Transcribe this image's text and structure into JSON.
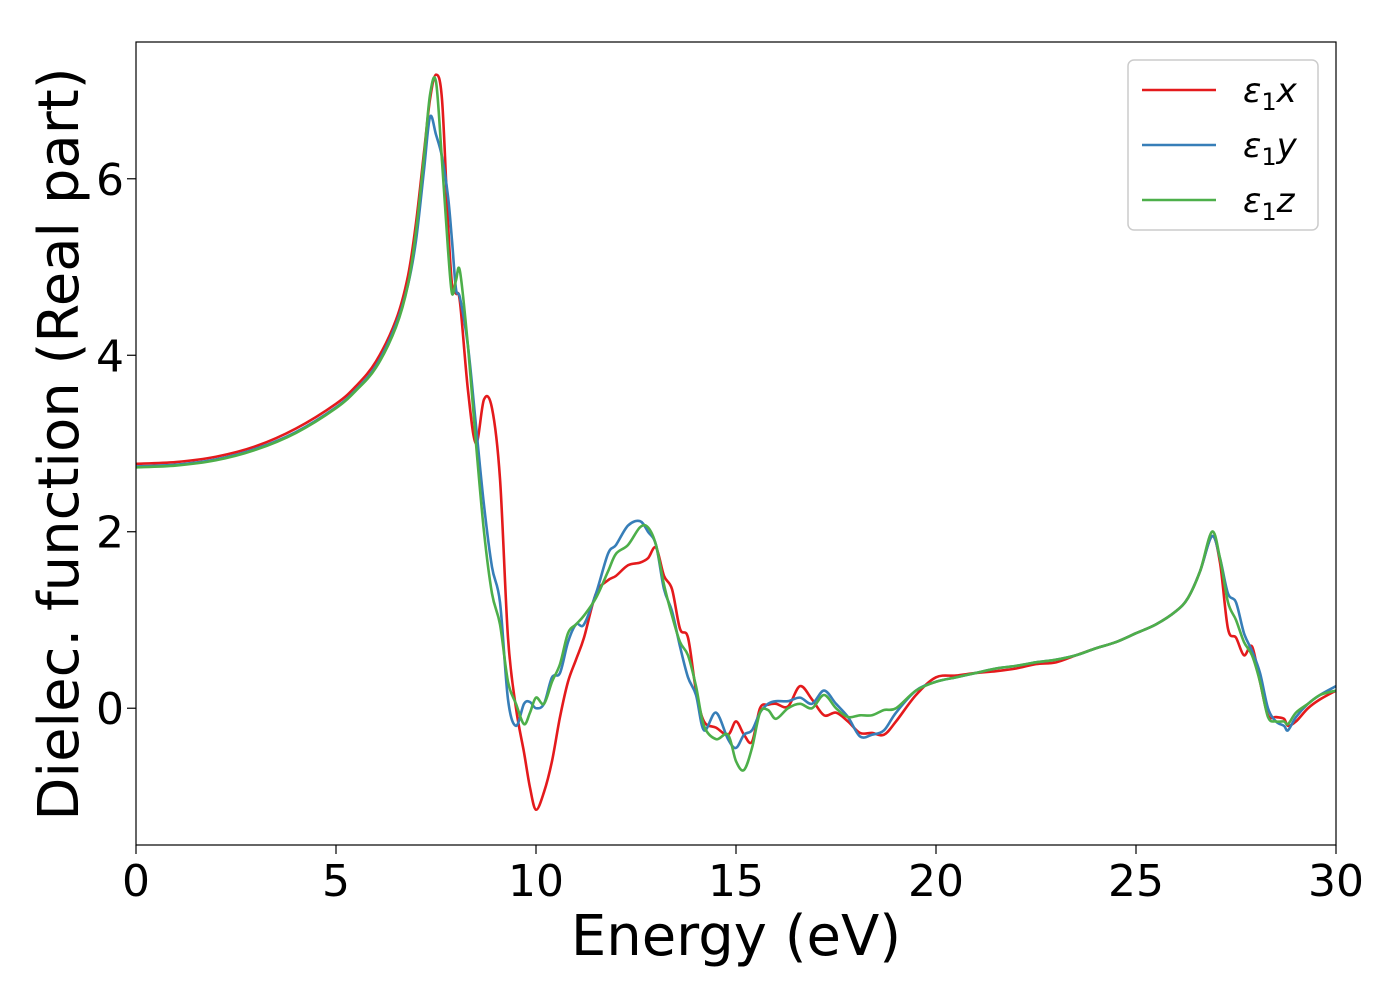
{
  "chart_data": {
    "type": "line",
    "title": "",
    "xlabel": "Energy (eV)",
    "ylabel": "Dielec. function (Real part)",
    "xlim": [
      0,
      30
    ],
    "ylim": [
      -1.55,
      7.55
    ],
    "xticks": [
      0,
      5,
      10,
      15,
      20,
      25,
      30
    ],
    "yticks": [
      0,
      2,
      4,
      6
    ],
    "grid": false,
    "legend_position": "top-right",
    "series": [
      {
        "name": "ε1x",
        "label_parts": [
          "ε",
          "1",
          "x"
        ],
        "color": "#e41a1c",
        "x": [
          0,
          1,
          2,
          3,
          4,
          5,
          5.5,
          6,
          6.5,
          6.8,
          7.0,
          7.2,
          7.35,
          7.5,
          7.65,
          7.8,
          7.9,
          8.0,
          8.1,
          8.3,
          8.5,
          8.7,
          8.9,
          9.1,
          9.3,
          9.5,
          9.7,
          9.85,
          10.0,
          10.2,
          10.4,
          10.6,
          10.8,
          11.0,
          11.2,
          11.5,
          11.8,
          12.0,
          12.3,
          12.6,
          12.8,
          13.0,
          13.2,
          13.4,
          13.6,
          13.8,
          14.0,
          14.2,
          14.5,
          14.8,
          15.0,
          15.2,
          15.4,
          15.6,
          15.8,
          16.0,
          16.3,
          16.6,
          16.9,
          17.2,
          17.5,
          17.8,
          18.1,
          18.4,
          18.7,
          19.0,
          19.5,
          20.0,
          20.5,
          21.0,
          21.5,
          22.0,
          22.5,
          23.0,
          23.5,
          24.0,
          24.5,
          25.0,
          25.5,
          26.0,
          26.3,
          26.6,
          26.9,
          27.1,
          27.3,
          27.5,
          27.7,
          27.9,
          28.1,
          28.3,
          28.5,
          28.7,
          28.8,
          29.0,
          29.3,
          29.6,
          30.0
        ],
        "y": [
          2.77,
          2.79,
          2.85,
          2.97,
          3.17,
          3.45,
          3.65,
          3.93,
          4.4,
          4.9,
          5.5,
          6.3,
          6.9,
          7.18,
          6.9,
          5.5,
          4.8,
          4.7,
          4.6,
          3.6,
          3.0,
          3.5,
          3.4,
          2.6,
          0.8,
          0.0,
          -0.5,
          -0.9,
          -1.15,
          -0.95,
          -0.6,
          -0.1,
          0.3,
          0.55,
          0.8,
          1.3,
          1.45,
          1.5,
          1.62,
          1.65,
          1.7,
          1.82,
          1.5,
          1.35,
          0.9,
          0.8,
          0.2,
          -0.15,
          -0.22,
          -0.3,
          -0.15,
          -0.3,
          -0.38,
          0.0,
          0.04,
          0.05,
          0.02,
          0.25,
          0.1,
          -0.08,
          -0.05,
          -0.15,
          -0.28,
          -0.28,
          -0.3,
          -0.15,
          0.15,
          0.35,
          0.37,
          0.4,
          0.42,
          0.45,
          0.5,
          0.52,
          0.6,
          0.68,
          0.75,
          0.85,
          0.95,
          1.1,
          1.25,
          1.55,
          1.95,
          1.65,
          0.9,
          0.8,
          0.6,
          0.7,
          0.3,
          -0.08,
          -0.1,
          -0.12,
          -0.2,
          -0.15,
          0.0,
          0.1,
          0.2
        ]
      },
      {
        "name": "ε1y",
        "label_parts": [
          "ε",
          "1",
          "y"
        ],
        "color": "#377eb8",
        "x": [
          0,
          1,
          2,
          3,
          4,
          5,
          5.5,
          6,
          6.5,
          6.8,
          7.0,
          7.2,
          7.35,
          7.5,
          7.65,
          7.8,
          7.9,
          8.0,
          8.1,
          8.3,
          8.5,
          8.7,
          8.9,
          9.1,
          9.3,
          9.5,
          9.7,
          9.85,
          10.0,
          10.2,
          10.4,
          10.6,
          10.8,
          11.0,
          11.2,
          11.5,
          11.8,
          12.0,
          12.3,
          12.6,
          12.8,
          13.0,
          13.2,
          13.4,
          13.6,
          13.8,
          14.0,
          14.2,
          14.5,
          14.8,
          15.0,
          15.2,
          15.4,
          15.6,
          15.8,
          16.0,
          16.3,
          16.6,
          16.9,
          17.2,
          17.5,
          17.8,
          18.1,
          18.4,
          18.7,
          19.0,
          19.5,
          20.0,
          20.5,
          21.0,
          21.5,
          22.0,
          22.5,
          23.0,
          23.5,
          24.0,
          24.5,
          25.0,
          25.5,
          26.0,
          26.3,
          26.6,
          26.9,
          27.1,
          27.3,
          27.5,
          27.7,
          27.9,
          28.1,
          28.3,
          28.5,
          28.7,
          28.8,
          29.0,
          29.3,
          29.6,
          30.0
        ],
        "y": [
          2.74,
          2.76,
          2.82,
          2.94,
          3.13,
          3.41,
          3.61,
          3.88,
          4.35,
          4.8,
          5.3,
          6.1,
          6.7,
          6.5,
          6.25,
          5.8,
          5.3,
          4.75,
          4.65,
          4.1,
          3.2,
          2.3,
          1.6,
          1.2,
          0.1,
          -0.2,
          0.05,
          0.07,
          0.0,
          0.05,
          0.35,
          0.4,
          0.75,
          0.95,
          0.95,
          1.3,
          1.75,
          1.85,
          2.07,
          2.12,
          2.0,
          1.85,
          1.35,
          1.1,
          0.7,
          0.35,
          0.15,
          -0.25,
          -0.05,
          -0.35,
          -0.45,
          -0.3,
          -0.25,
          -0.05,
          0.05,
          0.08,
          0.08,
          0.12,
          0.05,
          0.2,
          0.05,
          -0.1,
          -0.32,
          -0.3,
          -0.25,
          -0.05,
          0.2,
          0.3,
          0.35,
          0.4,
          0.45,
          0.48,
          0.52,
          0.55,
          0.6,
          0.68,
          0.75,
          0.85,
          0.95,
          1.1,
          1.25,
          1.55,
          1.95,
          1.7,
          1.3,
          1.2,
          0.85,
          0.65,
          0.4,
          0.0,
          -0.15,
          -0.2,
          -0.25,
          -0.1,
          0.05,
          0.15,
          0.25
        ]
      },
      {
        "name": "ε1z",
        "label_parts": [
          "ε",
          "1",
          "z"
        ],
        "color": "#4daf4a",
        "x": [
          0,
          1,
          2,
          3,
          4,
          5,
          5.5,
          6,
          6.5,
          6.8,
          7.0,
          7.2,
          7.35,
          7.5,
          7.65,
          7.8,
          7.9,
          8.0,
          8.1,
          8.3,
          8.5,
          8.7,
          8.9,
          9.1,
          9.3,
          9.5,
          9.7,
          9.85,
          10.0,
          10.2,
          10.4,
          10.6,
          10.8,
          11.0,
          11.2,
          11.5,
          11.8,
          12.0,
          12.3,
          12.6,
          12.8,
          13.0,
          13.2,
          13.4,
          13.6,
          13.8,
          14.0,
          14.2,
          14.5,
          14.8,
          15.0,
          15.2,
          15.4,
          15.6,
          15.8,
          16.0,
          16.3,
          16.6,
          16.9,
          17.2,
          17.5,
          17.8,
          18.1,
          18.4,
          18.7,
          19.0,
          19.5,
          20.0,
          20.5,
          21.0,
          21.5,
          22.0,
          22.5,
          23.0,
          23.5,
          24.0,
          24.5,
          25.0,
          25.5,
          26.0,
          26.3,
          26.6,
          26.9,
          27.1,
          27.3,
          27.5,
          27.7,
          27.9,
          28.1,
          28.3,
          28.5,
          28.7,
          28.8,
          29.0,
          29.3,
          29.6,
          30.0
        ],
        "y": [
          2.73,
          2.75,
          2.81,
          2.93,
          3.12,
          3.4,
          3.6,
          3.86,
          4.32,
          4.8,
          5.4,
          6.25,
          6.95,
          7.1,
          6.2,
          5.2,
          4.7,
          4.85,
          4.95,
          4.1,
          3.0,
          2.0,
          1.3,
          0.95,
          0.3,
          0.05,
          -0.18,
          -0.05,
          0.12,
          0.05,
          0.3,
          0.5,
          0.85,
          0.95,
          1.05,
          1.25,
          1.55,
          1.75,
          1.85,
          2.05,
          2.05,
          1.85,
          1.4,
          1.05,
          0.75,
          0.6,
          0.25,
          -0.2,
          -0.35,
          -0.3,
          -0.6,
          -0.7,
          -0.45,
          -0.05,
          -0.02,
          -0.12,
          0.0,
          0.05,
          0.0,
          0.15,
          0.0,
          -0.1,
          -0.08,
          -0.08,
          -0.02,
          0.0,
          0.2,
          0.3,
          0.35,
          0.4,
          0.45,
          0.48,
          0.52,
          0.55,
          0.6,
          0.68,
          0.75,
          0.85,
          0.95,
          1.1,
          1.25,
          1.55,
          2.0,
          1.7,
          1.2,
          1.0,
          0.75,
          0.6,
          0.3,
          -0.1,
          -0.15,
          -0.15,
          -0.18,
          -0.05,
          0.05,
          0.15,
          0.2
        ]
      }
    ]
  }
}
